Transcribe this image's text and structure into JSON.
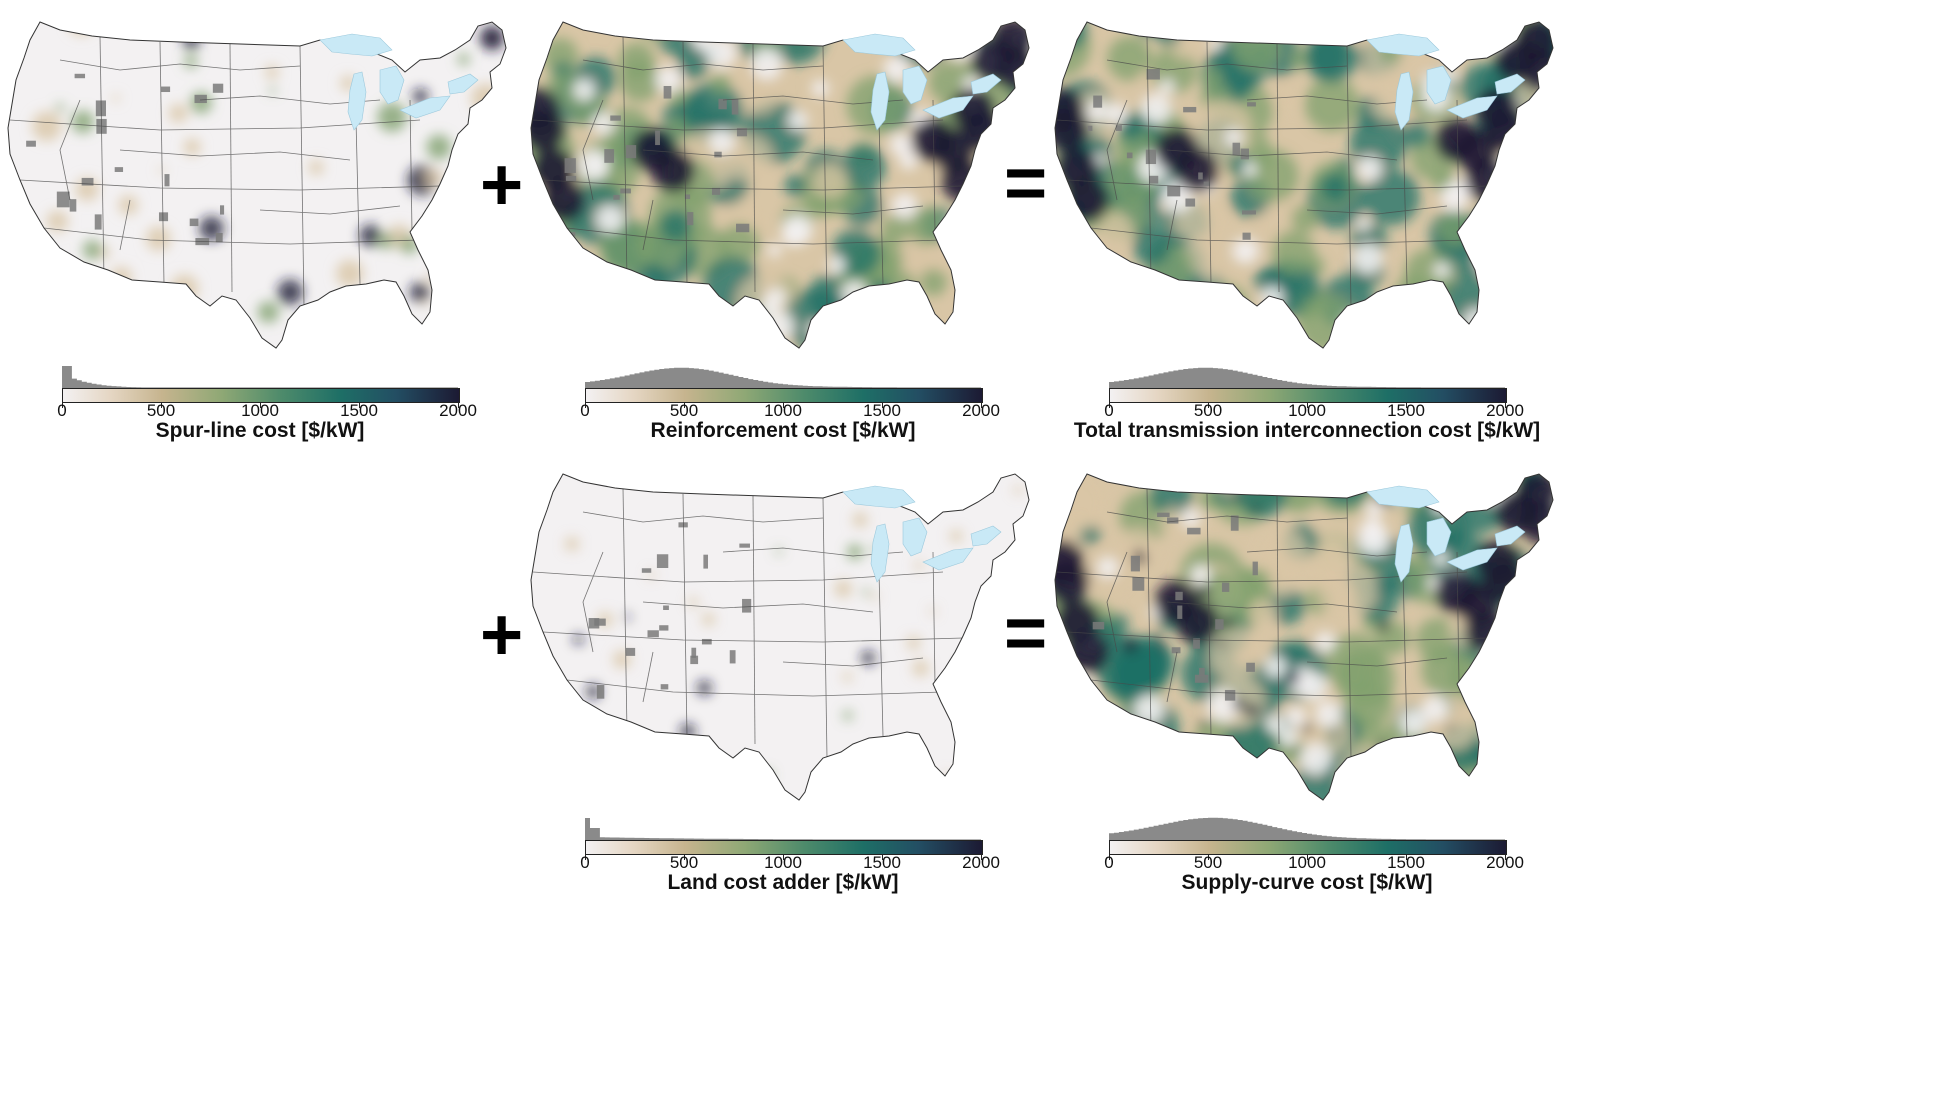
{
  "panels": [
    {
      "id": "spur",
      "title": "Spur-line cost [$/kW]",
      "intensity": "low",
      "hist": "spur"
    },
    {
      "id": "reinforcement",
      "title": "Reinforcement cost [$/kW]",
      "intensity": "high",
      "hist": "broad"
    },
    {
      "id": "total",
      "title": "Total transmission interconnection cost [$/kW]",
      "intensity": "high",
      "hist": "broad"
    },
    {
      "id": "land",
      "title": "Land cost adder [$/kW]",
      "intensity": "low",
      "hist": "spike"
    },
    {
      "id": "supply",
      "title": "Supply-curve cost [$/kW]",
      "intensity": "high",
      "hist": "broad2"
    }
  ],
  "colorbar_ticks": [
    "0",
    "500",
    "1000",
    "1500",
    "2000"
  ],
  "operators": {
    "plus": "+",
    "equals": "="
  },
  "colors": {
    "low": "#f3f1f2",
    "tan": "#d9c6a6",
    "green": "#7fa06e",
    "teal": "#1e6f66",
    "dark": "#1c1a33",
    "lakes": "#c9e9f6",
    "histogram": "#8a8a8a"
  }
}
